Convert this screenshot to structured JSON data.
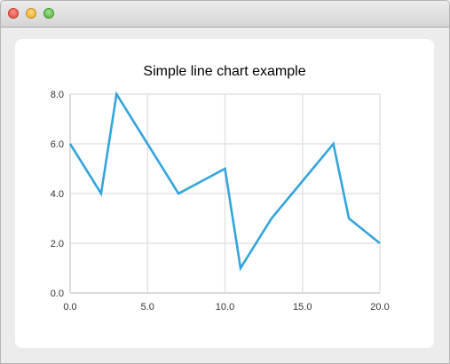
{
  "chart_data": {
    "type": "line",
    "title": "Simple line chart example",
    "xlabel": "",
    "ylabel": "",
    "xlim": [
      0,
      20
    ],
    "ylim": [
      0,
      8
    ],
    "x_ticks": [
      "0.0",
      "5.0",
      "10.0",
      "15.0",
      "20.0"
    ],
    "y_ticks": [
      "0.0",
      "2.0",
      "4.0",
      "6.0",
      "8.0"
    ],
    "grid": true,
    "legend": "none",
    "series": [
      {
        "color": "#33a4dc",
        "points": [
          {
            "x": 0,
            "y": 6
          },
          {
            "x": 2,
            "y": 4
          },
          {
            "x": 3,
            "y": 8
          },
          {
            "x": 7,
            "y": 4
          },
          {
            "x": 10,
            "y": 5
          },
          {
            "x": 11,
            "y": 1
          },
          {
            "x": 13,
            "y": 3
          },
          {
            "x": 17,
            "y": 6
          },
          {
            "x": 18,
            "y": 3
          },
          {
            "x": 20,
            "y": 2
          }
        ]
      }
    ]
  }
}
